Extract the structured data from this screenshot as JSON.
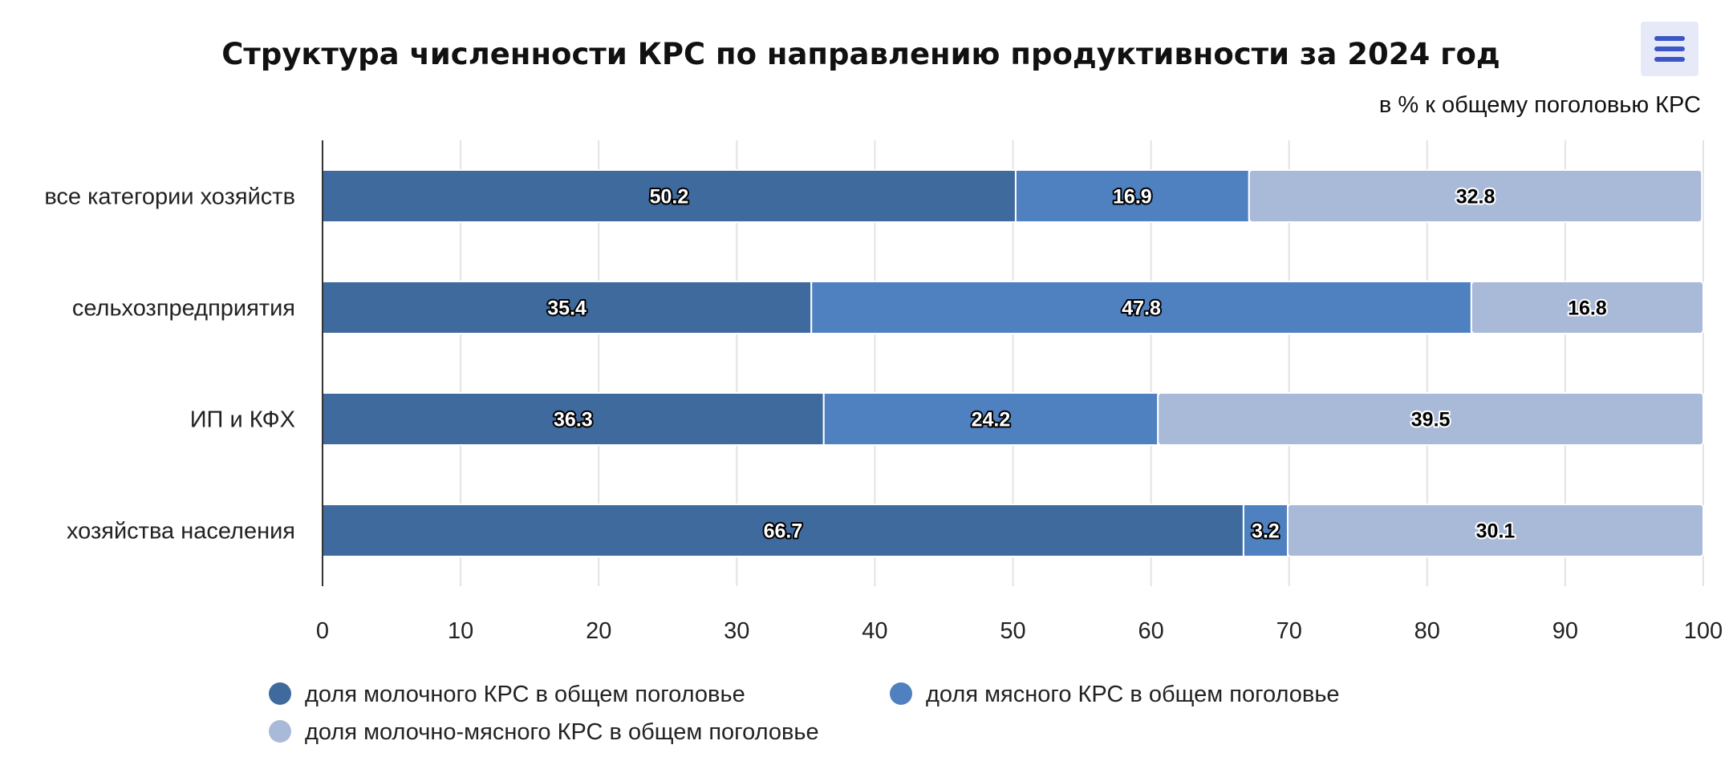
{
  "chart_data": {
    "type": "bar",
    "orientation": "horizontal",
    "stacked": true,
    "title": "Структура численности КРС по направлению продуктивности за 2024 год",
    "subtitle": "в % к общему поголовью КРС",
    "categories": [
      "все категории хозяйств",
      "сельхозпредприятия",
      "ИП и КФХ",
      "хозяйства населения"
    ],
    "series": [
      {
        "name": "доля молочного КРС в общем поголовье",
        "color": "#3f6a9e",
        "values": [
          50.2,
          35.4,
          36.3,
          66.7
        ]
      },
      {
        "name": "доля мясного КРС в общем поголовье",
        "color": "#4f80bf",
        "values": [
          16.9,
          47.8,
          24.2,
          3.2
        ]
      },
      {
        "name": "доля молочно-мясного КРС в общем поголовье",
        "color": "#a9b9d8",
        "values": [
          32.8,
          16.8,
          39.5,
          30.1
        ]
      }
    ],
    "xlim": [
      0,
      100
    ],
    "xticks": [
      "0",
      "10",
      "20",
      "30",
      "40",
      "50",
      "60",
      "70",
      "80",
      "90",
      "100"
    ],
    "grid": true,
    "legend_position": "bottom",
    "data_labels": true
  },
  "toolbar": {
    "menu_icon": "hamburger-menu-icon"
  }
}
